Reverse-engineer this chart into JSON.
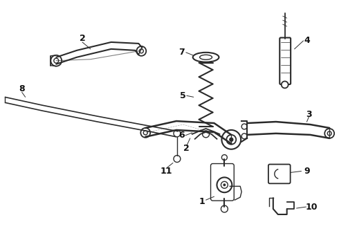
{
  "bg_color": "#ffffff",
  "line_color": "#2a2a2a",
  "label_color": "#111111",
  "figsize": [
    4.9,
    3.6
  ],
  "dpi": 100
}
